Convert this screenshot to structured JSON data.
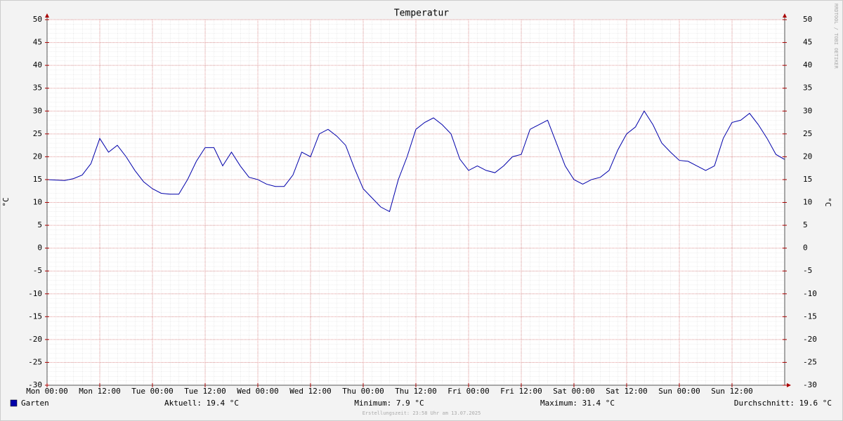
{
  "chart_data": {
    "type": "line",
    "title": "Temperatur",
    "y_label": "°C",
    "y2_label": "°C",
    "watermark": "RRDTOOL / TOBI OETIKER",
    "footer": "Erstellungszeit: 23:58 Uhr am 13.07.2025",
    "x": [
      0,
      2,
      4,
      6,
      8,
      10,
      12,
      14,
      16,
      18,
      20,
      22,
      24,
      26,
      28,
      30,
      32,
      34,
      36,
      38,
      40,
      42,
      44,
      46,
      48,
      50,
      52,
      54,
      56,
      58,
      60,
      62,
      64,
      66,
      68,
      70,
      72,
      74,
      76,
      78,
      80,
      82,
      84,
      86,
      88,
      90,
      92,
      94,
      96,
      98,
      100,
      102,
      104,
      106,
      108,
      110,
      112,
      114,
      116,
      118,
      120,
      122,
      124,
      126,
      128,
      130,
      132,
      134,
      136,
      138,
      140,
      142,
      144,
      146,
      148,
      150,
      152,
      154,
      156,
      158,
      160,
      162,
      164,
      166,
      168
    ],
    "series": [
      {
        "name": "Garten",
        "color": "#0000aa",
        "values": [
          15,
          14.9,
          14.8,
          15.2,
          16,
          18.5,
          24,
          21,
          22.5,
          20,
          17,
          14.5,
          13,
          12,
          11.8,
          11.8,
          15,
          19,
          22,
          22,
          18,
          21,
          18,
          15.5,
          15,
          14,
          13.5,
          13.5,
          16,
          21,
          20,
          25,
          26,
          24.5,
          22.5,
          17.5,
          13,
          11,
          9,
          8,
          15,
          20,
          26,
          27.5,
          28.5,
          27,
          25,
          19.5,
          17,
          18,
          17,
          16.5,
          18,
          20,
          20.5,
          26,
          27,
          28,
          23,
          18,
          15,
          14,
          15,
          15.5,
          17,
          21.5,
          25,
          26.5,
          30,
          27,
          23,
          21,
          19.2,
          19,
          18,
          17,
          18,
          24,
          27.5,
          28,
          29.5,
          27,
          24,
          20.5,
          19.4
        ]
      }
    ],
    "xlim": [
      0,
      168
    ],
    "xticks": [
      {
        "value": 0,
        "label": "Mon 00:00"
      },
      {
        "value": 12,
        "label": "Mon 12:00"
      },
      {
        "value": 24,
        "label": "Tue 00:00"
      },
      {
        "value": 36,
        "label": "Tue 12:00"
      },
      {
        "value": 48,
        "label": "Wed 00:00"
      },
      {
        "value": 60,
        "label": "Wed 12:00"
      },
      {
        "value": 72,
        "label": "Thu 00:00"
      },
      {
        "value": 84,
        "label": "Thu 12:00"
      },
      {
        "value": 96,
        "label": "Fri 00:00"
      },
      {
        "value": 108,
        "label": "Fri 12:00"
      },
      {
        "value": 120,
        "label": "Sat 00:00"
      },
      {
        "value": 132,
        "label": "Sat 12:00"
      },
      {
        "value": 144,
        "label": "Sun 00:00"
      },
      {
        "value": 156,
        "label": "Sun 12:00"
      }
    ],
    "ylim": [
      -30,
      50
    ],
    "yticks": [
      -30,
      -25,
      -20,
      -15,
      -10,
      -5,
      0,
      5,
      10,
      15,
      20,
      25,
      30,
      35,
      40,
      45,
      50
    ],
    "y2lim": [
      -30,
      50
    ],
    "y2ticks": [
      -30,
      -25,
      -20,
      -15,
      -10,
      -5,
      0,
      5,
      10,
      15,
      20,
      25,
      30,
      35,
      40,
      45,
      50
    ],
    "grid": true,
    "stats": [
      "Aktuell: 19.4 °C",
      "Minimum: 7.9 °C",
      "Maximum: 31.4 °C",
      "Durchschnitt: 19.6 °C"
    ]
  }
}
